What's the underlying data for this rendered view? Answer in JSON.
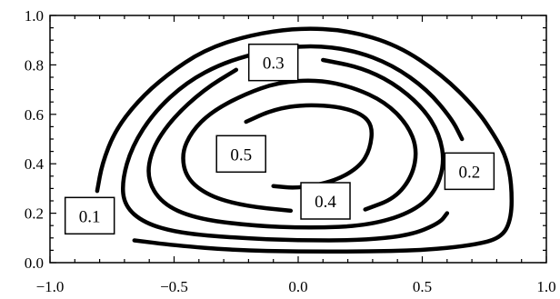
{
  "chart_data": {
    "type": "contour",
    "xlim": [
      -1.0,
      1.0
    ],
    "ylim": [
      0.0,
      1.0
    ],
    "x_ticks": [
      "−1.0",
      "−0.5",
      "0.0",
      "0.5",
      "1.0"
    ],
    "x_tick_values": [
      -1.0,
      -0.5,
      0.0,
      0.5,
      1.0
    ],
    "y_ticks": [
      "0.0",
      "0.2",
      "0.4",
      "0.6",
      "0.8",
      "1.0"
    ],
    "y_tick_values": [
      0.0,
      0.2,
      0.4,
      0.6,
      0.8,
      1.0
    ],
    "grid": false,
    "line_color": "#000000",
    "contours": [
      {
        "level": "0.1",
        "label_at": [
          -0.84,
          0.19
        ],
        "points": [
          [
            -0.81,
            0.29
          ],
          [
            -0.79,
            0.4
          ],
          [
            -0.74,
            0.53
          ],
          [
            -0.65,
            0.65
          ],
          [
            -0.53,
            0.76
          ],
          [
            -0.38,
            0.86
          ],
          [
            -0.2,
            0.92
          ],
          [
            0.0,
            0.95
          ],
          [
            0.2,
            0.94
          ],
          [
            0.4,
            0.88
          ],
          [
            0.58,
            0.76
          ],
          [
            0.72,
            0.62
          ],
          [
            0.8,
            0.5
          ],
          [
            0.84,
            0.42
          ],
          [
            0.86,
            0.32
          ],
          [
            0.86,
            0.18
          ],
          [
            0.82,
            0.1
          ],
          [
            0.7,
            0.07
          ],
          [
            0.5,
            0.05
          ],
          [
            0.25,
            0.045
          ],
          [
            0.0,
            0.045
          ],
          [
            -0.25,
            0.05
          ],
          [
            -0.5,
            0.07
          ],
          [
            -0.66,
            0.09
          ]
        ]
      },
      {
        "level": "0.2",
        "label_at": [
          0.69,
          0.37
        ],
        "points": [
          [
            0.6,
            0.2
          ],
          [
            0.57,
            0.16
          ],
          [
            0.45,
            0.11
          ],
          [
            0.25,
            0.09
          ],
          [
            0.0,
            0.09
          ],
          [
            -0.25,
            0.1
          ],
          [
            -0.48,
            0.12
          ],
          [
            -0.62,
            0.16
          ],
          [
            -0.7,
            0.23
          ],
          [
            -0.71,
            0.33
          ],
          [
            -0.67,
            0.47
          ],
          [
            -0.58,
            0.61
          ],
          [
            -0.45,
            0.73
          ],
          [
            -0.3,
            0.81
          ],
          [
            -0.12,
            0.86
          ],
          [
            0.05,
            0.88
          ],
          [
            0.22,
            0.86
          ],
          [
            0.38,
            0.8
          ],
          [
            0.52,
            0.7
          ],
          [
            0.62,
            0.58
          ],
          [
            0.66,
            0.5
          ]
        ]
      },
      {
        "level": "0.3",
        "label_at": [
          -0.1,
          0.81
        ],
        "points": [
          [
            0.1,
            0.82
          ],
          [
            0.25,
            0.79
          ],
          [
            0.38,
            0.73
          ],
          [
            0.5,
            0.63
          ],
          [
            0.57,
            0.52
          ],
          [
            0.59,
            0.4
          ],
          [
            0.55,
            0.28
          ],
          [
            0.45,
            0.2
          ],
          [
            0.28,
            0.15
          ],
          [
            0.05,
            0.14
          ],
          [
            -0.2,
            0.15
          ],
          [
            -0.42,
            0.18
          ],
          [
            -0.55,
            0.24
          ],
          [
            -0.61,
            0.34
          ],
          [
            -0.59,
            0.46
          ],
          [
            -0.51,
            0.58
          ],
          [
            -0.38,
            0.7
          ],
          [
            -0.25,
            0.78
          ]
        ]
      },
      {
        "level": "0.4",
        "label_at": [
          0.11,
          0.25
        ],
        "points": [
          [
            -0.03,
            0.21
          ],
          [
            -0.22,
            0.23
          ],
          [
            -0.36,
            0.27
          ],
          [
            -0.45,
            0.34
          ],
          [
            -0.47,
            0.44
          ],
          [
            -0.43,
            0.53
          ],
          [
            -0.35,
            0.61
          ],
          [
            -0.22,
            0.68
          ],
          [
            -0.08,
            0.73
          ],
          [
            0.08,
            0.74
          ],
          [
            0.22,
            0.71
          ],
          [
            0.35,
            0.65
          ],
          [
            0.44,
            0.56
          ],
          [
            0.48,
            0.46
          ],
          [
            0.46,
            0.35
          ],
          [
            0.39,
            0.26
          ],
          [
            0.27,
            0.215
          ]
        ]
      },
      {
        "level": "0.5",
        "label_at": [
          -0.23,
          0.44
        ],
        "points": [
          [
            -0.21,
            0.57
          ],
          [
            -0.1,
            0.62
          ],
          [
            0.03,
            0.64
          ],
          [
            0.17,
            0.63
          ],
          [
            0.26,
            0.6
          ],
          [
            0.3,
            0.55
          ],
          [
            0.29,
            0.46
          ],
          [
            0.25,
            0.39
          ],
          [
            0.15,
            0.33
          ],
          [
            0.0,
            0.3
          ],
          [
            -0.1,
            0.31
          ]
        ]
      }
    ]
  }
}
